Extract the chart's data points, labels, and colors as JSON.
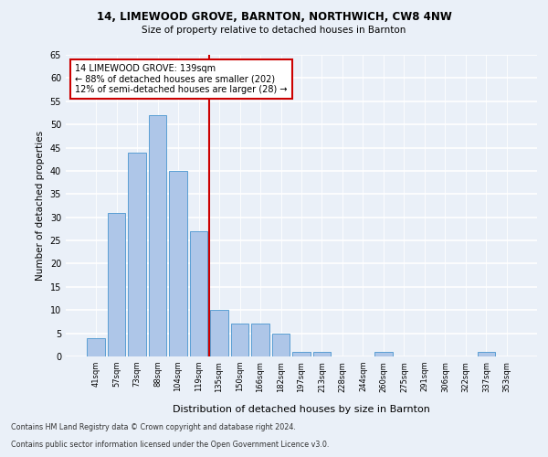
{
  "title1": "14, LIMEWOOD GROVE, BARNTON, NORTHWICH, CW8 4NW",
  "title2": "Size of property relative to detached houses in Barnton",
  "xlabel": "Distribution of detached houses by size in Barnton",
  "ylabel": "Number of detached properties",
  "categories": [
    "41sqm",
    "57sqm",
    "73sqm",
    "88sqm",
    "104sqm",
    "119sqm",
    "135sqm",
    "150sqm",
    "166sqm",
    "182sqm",
    "197sqm",
    "213sqm",
    "228sqm",
    "244sqm",
    "260sqm",
    "275sqm",
    "291sqm",
    "306sqm",
    "322sqm",
    "337sqm",
    "353sqm"
  ],
  "values": [
    4,
    31,
    44,
    52,
    40,
    27,
    10,
    7,
    7,
    5,
    1,
    1,
    0,
    0,
    1,
    0,
    0,
    0,
    0,
    1,
    0
  ],
  "bar_color": "#aec6e8",
  "bar_edge_color": "#5a9fd4",
  "vline_color": "#cc0000",
  "annotation_text": "14 LIMEWOOD GROVE: 139sqm\n← 88% of detached houses are smaller (202)\n12% of semi-detached houses are larger (28) →",
  "annotation_box_color": "#ffffff",
  "annotation_box_edge": "#cc0000",
  "ylim": [
    0,
    65
  ],
  "yticks": [
    0,
    5,
    10,
    15,
    20,
    25,
    30,
    35,
    40,
    45,
    50,
    55,
    60,
    65
  ],
  "footnote1": "Contains HM Land Registry data © Crown copyright and database right 2024.",
  "footnote2": "Contains public sector information licensed under the Open Government Licence v3.0.",
  "background_color": "#eaf0f8",
  "grid_color": "#ffffff"
}
